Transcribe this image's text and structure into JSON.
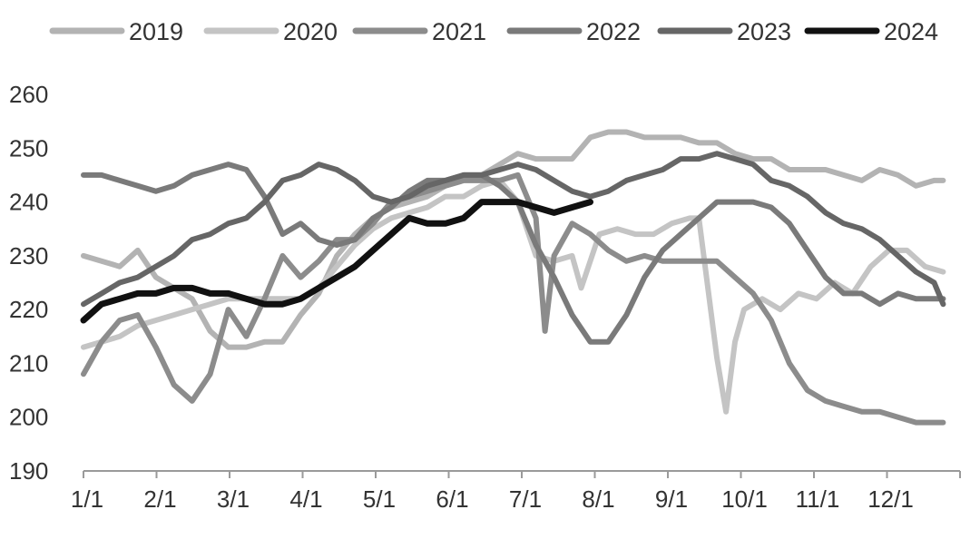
{
  "chart_data": {
    "type": "line",
    "title": "",
    "xlabel": "",
    "ylabel": "",
    "ylim": [
      190,
      260
    ],
    "yticks": [
      190,
      200,
      210,
      220,
      230,
      240,
      250,
      260
    ],
    "x_ticks": [
      "1/1",
      "2/1",
      "3/1",
      "4/1",
      "5/1",
      "6/1",
      "7/1",
      "8/1",
      "9/1",
      "10/1",
      "11/1",
      "12/1"
    ],
    "legend_position": "top",
    "grid": false,
    "series": [
      {
        "name": "2019",
        "color": "#b3b3b3",
        "points": [
          [
            1,
            230
          ],
          [
            3,
            229
          ],
          [
            5,
            228
          ],
          [
            7,
            231
          ],
          [
            9,
            226
          ],
          [
            11,
            224
          ],
          [
            13,
            222
          ],
          [
            15,
            216
          ],
          [
            17,
            213
          ],
          [
            19,
            213
          ],
          [
            21,
            214
          ],
          [
            23,
            214
          ],
          [
            25,
            219
          ],
          [
            27,
            223
          ],
          [
            29,
            230
          ],
          [
            31,
            234
          ],
          [
            33,
            237
          ],
          [
            35,
            239
          ],
          [
            37,
            240
          ],
          [
            39,
            241
          ],
          [
            41,
            243
          ],
          [
            43,
            244
          ],
          [
            45,
            245
          ],
          [
            47,
            247
          ],
          [
            49,
            249
          ],
          [
            51,
            248
          ],
          [
            53,
            248
          ],
          [
            55,
            248
          ],
          [
            57,
            252
          ],
          [
            59,
            253
          ],
          [
            61,
            253
          ],
          [
            63,
            252
          ],
          [
            65,
            252
          ],
          [
            67,
            252
          ],
          [
            69,
            251
          ],
          [
            71,
            251
          ],
          [
            73,
            249
          ],
          [
            75,
            248
          ],
          [
            77,
            248
          ],
          [
            79,
            246
          ],
          [
            81,
            246
          ],
          [
            83,
            246
          ],
          [
            85,
            245
          ],
          [
            87,
            244
          ],
          [
            89,
            246
          ],
          [
            91,
            245
          ],
          [
            93,
            243
          ],
          [
            95,
            244
          ],
          [
            96,
            244
          ]
        ]
      },
      {
        "name": "2020",
        "color": "#c4c4c4",
        "points": [
          [
            1,
            213
          ],
          [
            3,
            214
          ],
          [
            5,
            215
          ],
          [
            7,
            217
          ],
          [
            9,
            218
          ],
          [
            11,
            219
          ],
          [
            13,
            220
          ],
          [
            15,
            221
          ],
          [
            17,
            222
          ],
          [
            19,
            222
          ],
          [
            21,
            222
          ],
          [
            23,
            222
          ],
          [
            25,
            222
          ],
          [
            27,
            224
          ],
          [
            29,
            228
          ],
          [
            31,
            232
          ],
          [
            33,
            235
          ],
          [
            35,
            237
          ],
          [
            37,
            238
          ],
          [
            39,
            239
          ],
          [
            41,
            241
          ],
          [
            43,
            241
          ],
          [
            45,
            243
          ],
          [
            47,
            244
          ],
          [
            49,
            240
          ],
          [
            51,
            230
          ],
          [
            53,
            229
          ],
          [
            55,
            230
          ],
          [
            56,
            224
          ],
          [
            58,
            234
          ],
          [
            60,
            235
          ],
          [
            62,
            234
          ],
          [
            64,
            234
          ],
          [
            66,
            236
          ],
          [
            68,
            237
          ],
          [
            69,
            237
          ],
          [
            71,
            211
          ],
          [
            72,
            201
          ],
          [
            73,
            214
          ],
          [
            74,
            220
          ],
          [
            76,
            222
          ],
          [
            78,
            220
          ],
          [
            80,
            223
          ],
          [
            82,
            222
          ],
          [
            84,
            225
          ],
          [
            86,
            223
          ],
          [
            88,
            228
          ],
          [
            90,
            231
          ],
          [
            92,
            231
          ],
          [
            94,
            228
          ],
          [
            96,
            227
          ]
        ]
      },
      {
        "name": "2021",
        "color": "#8c8c8c",
        "points": [
          [
            1,
            208
          ],
          [
            3,
            214
          ],
          [
            5,
            218
          ],
          [
            7,
            219
          ],
          [
            9,
            213
          ],
          [
            11,
            206
          ],
          [
            13,
            203
          ],
          [
            15,
            208
          ],
          [
            17,
            220
          ],
          [
            19,
            215
          ],
          [
            21,
            222
          ],
          [
            23,
            230
          ],
          [
            25,
            226
          ],
          [
            27,
            229
          ],
          [
            29,
            233
          ],
          [
            31,
            233
          ],
          [
            33,
            236
          ],
          [
            35,
            240
          ],
          [
            37,
            241
          ],
          [
            39,
            242
          ],
          [
            41,
            243
          ],
          [
            43,
            244
          ],
          [
            45,
            244
          ],
          [
            47,
            244
          ],
          [
            49,
            245
          ],
          [
            51,
            237
          ],
          [
            52,
            216
          ],
          [
            53,
            230
          ],
          [
            55,
            236
          ],
          [
            57,
            234
          ],
          [
            59,
            231
          ],
          [
            61,
            229
          ],
          [
            63,
            230
          ],
          [
            65,
            229
          ],
          [
            67,
            229
          ],
          [
            69,
            229
          ],
          [
            71,
            229
          ],
          [
            73,
            226
          ],
          [
            75,
            223
          ],
          [
            77,
            218
          ],
          [
            79,
            210
          ],
          [
            81,
            205
          ],
          [
            83,
            203
          ],
          [
            85,
            202
          ],
          [
            87,
            201
          ],
          [
            89,
            201
          ],
          [
            91,
            200
          ],
          [
            93,
            199
          ],
          [
            95,
            199
          ],
          [
            96,
            199
          ]
        ]
      },
      {
        "name": "2022",
        "color": "#7a7a7a",
        "points": [
          [
            1,
            245
          ],
          [
            3,
            245
          ],
          [
            5,
            244
          ],
          [
            7,
            243
          ],
          [
            9,
            242
          ],
          [
            11,
            243
          ],
          [
            13,
            245
          ],
          [
            15,
            246
          ],
          [
            17,
            247
          ],
          [
            19,
            246
          ],
          [
            21,
            241
          ],
          [
            23,
            234
          ],
          [
            25,
            236
          ],
          [
            27,
            233
          ],
          [
            29,
            232
          ],
          [
            31,
            233
          ],
          [
            33,
            237
          ],
          [
            35,
            239
          ],
          [
            37,
            242
          ],
          [
            39,
            244
          ],
          [
            41,
            244
          ],
          [
            43,
            245
          ],
          [
            45,
            245
          ],
          [
            47,
            243
          ],
          [
            49,
            240
          ],
          [
            51,
            232
          ],
          [
            53,
            226
          ],
          [
            55,
            219
          ],
          [
            57,
            214
          ],
          [
            59,
            214
          ],
          [
            61,
            219
          ],
          [
            63,
            226
          ],
          [
            65,
            231
          ],
          [
            67,
            234
          ],
          [
            69,
            237
          ],
          [
            71,
            240
          ],
          [
            73,
            240
          ],
          [
            75,
            240
          ],
          [
            77,
            239
          ],
          [
            79,
            236
          ],
          [
            81,
            231
          ],
          [
            83,
            226
          ],
          [
            85,
            223
          ],
          [
            87,
            223
          ],
          [
            89,
            221
          ],
          [
            91,
            223
          ],
          [
            93,
            222
          ],
          [
            95,
            222
          ],
          [
            96,
            222
          ]
        ]
      },
      {
        "name": "2023",
        "color": "#666666",
        "points": [
          [
            1,
            221
          ],
          [
            3,
            223
          ],
          [
            5,
            225
          ],
          [
            7,
            226
          ],
          [
            9,
            228
          ],
          [
            11,
            230
          ],
          [
            13,
            233
          ],
          [
            15,
            234
          ],
          [
            17,
            236
          ],
          [
            19,
            237
          ],
          [
            21,
            240
          ],
          [
            23,
            244
          ],
          [
            25,
            245
          ],
          [
            27,
            247
          ],
          [
            29,
            246
          ],
          [
            31,
            244
          ],
          [
            33,
            241
          ],
          [
            35,
            240
          ],
          [
            37,
            241
          ],
          [
            39,
            243
          ],
          [
            41,
            244
          ],
          [
            43,
            245
          ],
          [
            45,
            245
          ],
          [
            47,
            246
          ],
          [
            49,
            247
          ],
          [
            51,
            246
          ],
          [
            53,
            244
          ],
          [
            55,
            242
          ],
          [
            57,
            241
          ],
          [
            59,
            242
          ],
          [
            61,
            244
          ],
          [
            63,
            245
          ],
          [
            65,
            246
          ],
          [
            67,
            248
          ],
          [
            69,
            248
          ],
          [
            71,
            249
          ],
          [
            73,
            248
          ],
          [
            75,
            247
          ],
          [
            77,
            244
          ],
          [
            79,
            243
          ],
          [
            81,
            241
          ],
          [
            83,
            238
          ],
          [
            85,
            236
          ],
          [
            87,
            235
          ],
          [
            89,
            233
          ],
          [
            91,
            230
          ],
          [
            93,
            227
          ],
          [
            95,
            225
          ],
          [
            96,
            221
          ]
        ]
      },
      {
        "name": "2024",
        "color": "#111111",
        "points": [
          [
            1,
            218
          ],
          [
            3,
            221
          ],
          [
            5,
            222
          ],
          [
            7,
            223
          ],
          [
            9,
            223
          ],
          [
            11,
            224
          ],
          [
            13,
            224
          ],
          [
            15,
            223
          ],
          [
            17,
            223
          ],
          [
            19,
            222
          ],
          [
            21,
            221
          ],
          [
            23,
            221
          ],
          [
            25,
            222
          ],
          [
            27,
            224
          ],
          [
            29,
            226
          ],
          [
            31,
            228
          ],
          [
            33,
            231
          ],
          [
            35,
            234
          ],
          [
            37,
            237
          ],
          [
            39,
            236
          ],
          [
            41,
            236
          ],
          [
            43,
            237
          ],
          [
            45,
            240
          ],
          [
            47,
            240
          ],
          [
            49,
            240
          ],
          [
            51,
            239
          ],
          [
            53,
            238
          ],
          [
            55,
            239
          ],
          [
            57,
            240
          ]
        ]
      }
    ]
  }
}
